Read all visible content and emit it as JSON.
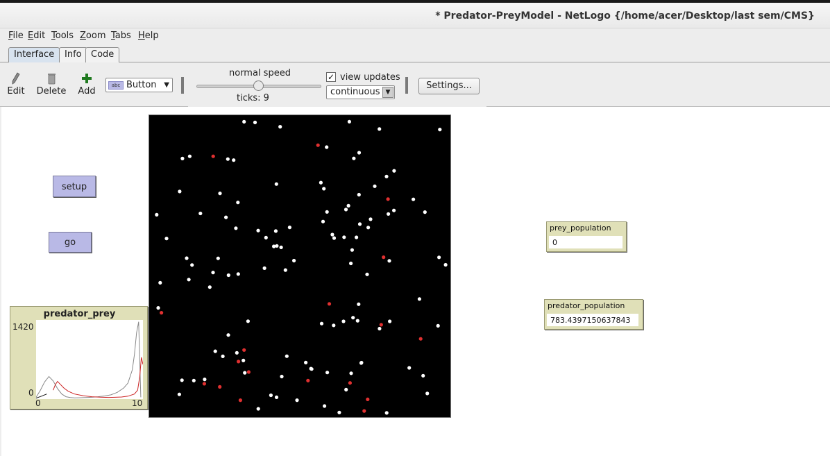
{
  "window": {
    "title": "* Predator-PreyModel - NetLogo {/home/acer/Desktop/last sem/CMS}"
  },
  "menu": {
    "items": [
      {
        "underline": "F",
        "rest": "ile"
      },
      {
        "underline": "E",
        "rest": "dit"
      },
      {
        "underline": "T",
        "rest": "ools"
      },
      {
        "underline": "Z",
        "rest": "oom"
      },
      {
        "underline": "T",
        "rest": "abs"
      },
      {
        "underline": "H",
        "rest": "elp"
      }
    ]
  },
  "tabs": [
    {
      "label": "Interface",
      "active": true
    },
    {
      "label": "Info",
      "active": false
    },
    {
      "label": "Code",
      "active": false
    }
  ],
  "toolbar": {
    "edit_label": "Edit",
    "delete_label": "Delete",
    "add_label": "Add",
    "widget_badge": "abc",
    "widget_type": "Button",
    "speed_label": "normal speed",
    "speed_fraction": 0.5,
    "ticks_label": "ticks: 9",
    "view_updates_checked": true,
    "view_updates_label": "view updates",
    "update_mode": "continuous",
    "settings_label": "Settings..."
  },
  "interface": {
    "setup_label": "setup",
    "go_label": "go",
    "prey_monitor": {
      "label": "prey_population",
      "value": "0"
    },
    "predator_monitor": {
      "label": "predator_population",
      "value": "783.4397150637843"
    },
    "plot": {
      "title": "predator_prey",
      "ymax_label": "1420",
      "ymin_label": "0",
      "xmin_label": "0",
      "xmax_label": "10",
      "xlim": [
        0,
        10
      ],
      "ylim": [
        0,
        1420
      ]
    },
    "world": {
      "background": "#000000",
      "prey_color": "#ffffff",
      "predator_color": "#e03030"
    }
  },
  "chart_data": {
    "type": "line",
    "title": "predator_prey",
    "xlim": [
      0,
      10
    ],
    "ylim": [
      0,
      1420
    ],
    "grid": false,
    "series": [
      {
        "color": "#888888",
        "x": [
          0,
          0.4,
          0.8,
          1.2,
          1.6,
          2.0,
          2.4,
          2.8,
          3.2,
          3.6,
          4.0,
          4.6,
          5.2,
          5.8,
          6.4,
          7.0,
          7.6,
          8.2,
          8.6,
          9.0,
          9.2,
          9.4,
          9.6,
          9.8
        ],
        "y": [
          20,
          150,
          300,
          400,
          320,
          180,
          80,
          30,
          15,
          10,
          12,
          15,
          20,
          30,
          45,
          65,
          110,
          190,
          280,
          520,
          800,
          1200,
          1400,
          20
        ]
      },
      {
        "color": "#cc2222",
        "x": [
          1.6,
          1.8,
          2.0,
          2.2,
          2.6,
          3.0,
          3.6,
          4.4,
          5.2,
          6.0,
          6.8,
          7.4,
          8.0,
          8.6,
          9.2,
          9.5,
          9.7,
          9.85,
          10.0
        ],
        "y": [
          150,
          250,
          310,
          270,
          190,
          130,
          80,
          50,
          30,
          22,
          18,
          20,
          25,
          40,
          80,
          150,
          400,
          750,
          620
        ]
      },
      {
        "color": "#111111",
        "x": [
          0,
          0.5,
          1.0
        ],
        "y": [
          5,
          40,
          80
        ]
      }
    ]
  }
}
